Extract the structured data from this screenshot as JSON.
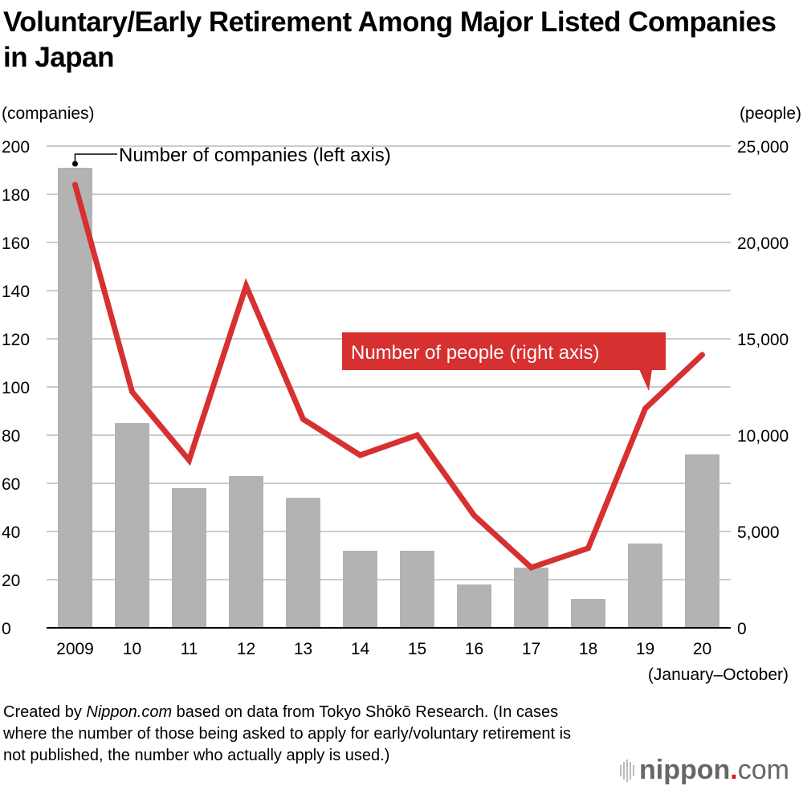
{
  "title": "Voluntary/Early Retirement Among Major Listed Companies in Japan",
  "colors": {
    "bar": "#b3b3b3",
    "line": "#d63031",
    "grid": "#cccccc"
  },
  "chart_data": {
    "type": "bar+line",
    "title": "Voluntary/Early Retirement Among Major Listed Companies in Japan",
    "categories": [
      "2009",
      "10",
      "11",
      "12",
      "13",
      "14",
      "15",
      "16",
      "17",
      "18",
      "19",
      "20"
    ],
    "x_note": "(January–October)",
    "left_axis": {
      "label": "(companies)",
      "range": [
        0,
        200
      ],
      "ticks": [
        0,
        20,
        40,
        60,
        80,
        100,
        120,
        140,
        160,
        180,
        200
      ]
    },
    "right_axis": {
      "label": "(people)",
      "range": [
        0,
        25000
      ],
      "ticks": [
        "0",
        "5,000",
        "10,000",
        "15,000",
        "20,000",
        "25,000"
      ]
    },
    "grid": true,
    "series": [
      {
        "name": "Number of companies (left axis)",
        "type": "bar",
        "axis": "left",
        "values": [
          191,
          85,
          58,
          63,
          54,
          32,
          32,
          18,
          25,
          12,
          35,
          72
        ]
      },
      {
        "name": "Number of people (right axis)",
        "type": "line",
        "axis": "right",
        "values": [
          23000,
          12250,
          8700,
          17750,
          10830,
          8960,
          10000,
          5830,
          3130,
          4130,
          11380,
          14170
        ]
      }
    ]
  },
  "footnote": {
    "prefix": "Created by ",
    "source_italic": "Nippon.com",
    "rest": " based on data from Tokyo Shōkō Research. (In cases where the number of those being asked to apply for early/voluntary retirement is not published, the number who actually apply is used.)"
  },
  "logo": {
    "main": "nippon",
    "dot": ".",
    "suffix": "com"
  }
}
